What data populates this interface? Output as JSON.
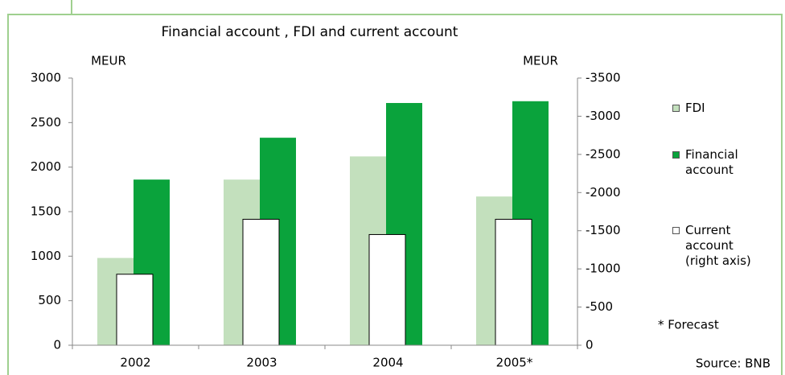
{
  "chart_data": {
    "type": "bar",
    "title": "Financial account , FDI and current account",
    "y_label": "MEUR",
    "y2_label": "MEUR",
    "categories": [
      "2002",
      "2003",
      "2004",
      "2005*"
    ],
    "series": [
      {
        "name": "FDI",
        "color": "#c3e0bd",
        "values": [
          980,
          1860,
          2120,
          1670
        ]
      },
      {
        "name": "Financial account",
        "color": "#0aa33c",
        "values": [
          1860,
          2330,
          2720,
          2740
        ]
      },
      {
        "name": "Current account (right axis)",
        "color": "#ffffff",
        "axis": "y2",
        "values": [
          -930,
          -1650,
          -1450,
          -1650
        ]
      }
    ],
    "ylim": [
      0,
      3000
    ],
    "yticks": [
      0,
      500,
      1000,
      1500,
      2000,
      2500,
      3000
    ],
    "y2lim": [
      0,
      -3500
    ],
    "y2ticks": [
      0,
      -500,
      -1000,
      -1500,
      -2000,
      -2500,
      -3000,
      -3500
    ],
    "annotations": [
      "* Forecast",
      "Source: BNB"
    ]
  }
}
